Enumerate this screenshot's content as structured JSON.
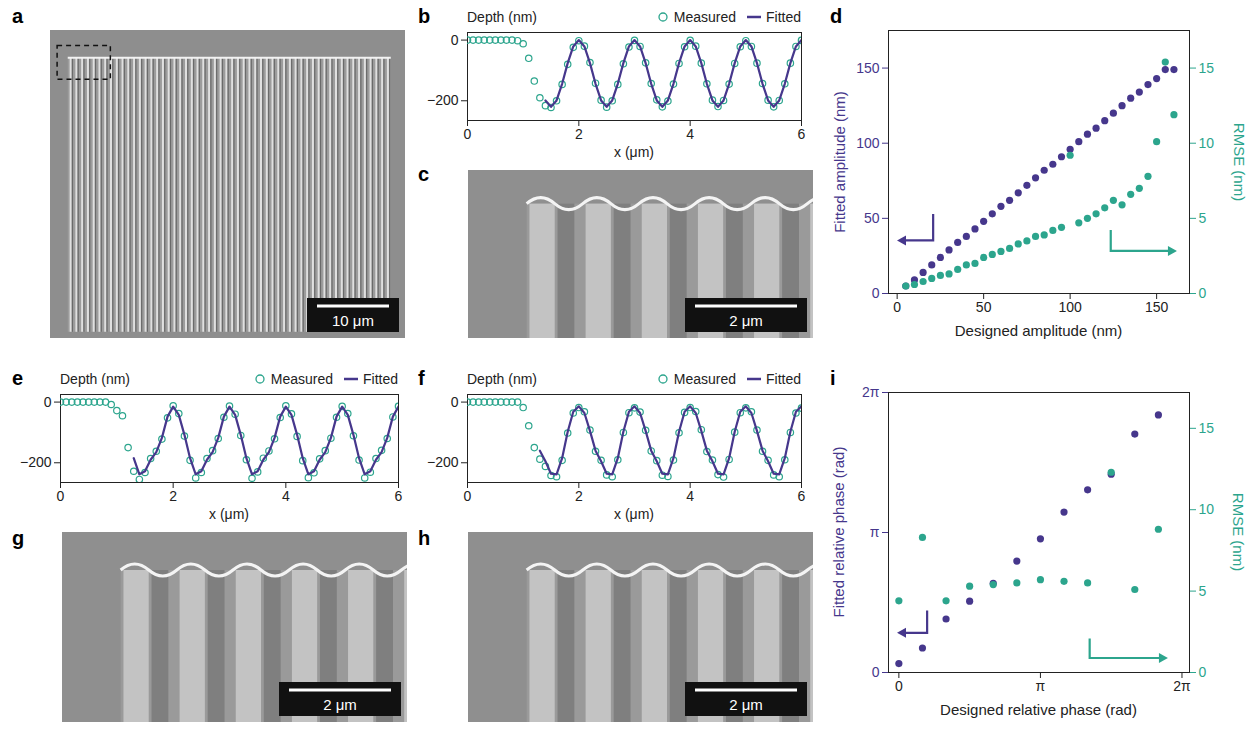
{
  "images": [
    {
      "panel": "a",
      "scale_bar": "10 μm"
    },
    {
      "panel": "c",
      "scale_bar": "2 μm"
    },
    {
      "panel": "g",
      "scale_bar": "2 μm"
    },
    {
      "panel": "h",
      "scale_bar": "2 μm"
    }
  ],
  "chart_data": [
    {
      "panel": "b",
      "type": "line",
      "y_label": "Depth (nm)",
      "x_label": "x (μm)",
      "xlim": [
        0,
        6
      ],
      "xticks": [
        0,
        2,
        4,
        6
      ],
      "ylim": [
        -265,
        25
      ],
      "yticks": [
        -200,
        0
      ],
      "legend": "top-right",
      "series": [
        {
          "name": "Measured",
          "type": "scatter",
          "marker": "open circle",
          "color": "#2ca58d",
          "x": [
            0,
            0.1,
            0.2,
            0.3,
            0.4,
            0.5,
            0.6,
            0.7,
            0.8,
            0.9,
            1,
            1.1,
            1.2,
            1.3,
            1.4,
            1.5,
            1.6,
            1.7,
            1.8,
            1.9,
            2,
            2.1,
            2.2,
            2.3,
            2.4,
            2.5,
            2.6,
            2.7,
            2.8,
            2.9,
            3,
            3.1,
            3.2,
            3.3,
            3.4,
            3.5,
            3.6,
            3.7,
            3.8,
            3.9,
            4,
            4.1,
            4.2,
            4.3,
            4.4,
            4.5,
            4.6,
            4.7,
            4.8,
            4.9,
            5,
            5.1,
            5.2,
            5.3,
            5.4,
            5.5,
            5.6,
            5.7,
            5.8,
            5.9,
            6
          ],
          "values": [
            0,
            0,
            0,
            0,
            0,
            0,
            0,
            0,
            0,
            -2,
            -12,
            -60,
            -135,
            -190,
            -216,
            -222,
            -200,
            -146,
            -80,
            -24,
            -2,
            -20,
            -74,
            -142,
            -198,
            -221,
            -200,
            -146,
            -78,
            -23,
            -1,
            -21,
            -75,
            -143,
            -197,
            -220,
            -201,
            -145,
            -77,
            -22,
            -1,
            -20,
            -76,
            -144,
            -198,
            -219,
            -199,
            -145,
            -77,
            -22,
            -2,
            -21,
            -76,
            -143,
            -198,
            -220,
            -199,
            -144,
            -76,
            -21,
            -1
          ]
        },
        {
          "name": "Fitted",
          "type": "line",
          "color": "#46378c",
          "x": [
            1.4,
            1.5,
            1.6,
            1.7,
            1.8,
            1.9,
            2,
            2.1,
            2.2,
            2.3,
            2.4,
            2.5,
            2.6,
            2.7,
            2.8,
            2.9,
            3,
            3.1,
            3.2,
            3.3,
            3.4,
            3.5,
            3.6,
            3.7,
            3.8,
            3.9,
            4,
            4.1,
            4.2,
            4.3,
            4.4,
            4.5,
            4.6,
            4.7,
            4.8,
            4.9,
            5,
            5.1,
            5.2,
            5.3,
            5.4,
            5.5,
            5.6,
            5.7,
            5.8,
            5.9,
            6
          ],
          "values": [
            -199,
            -220,
            -199,
            -144,
            -76,
            -21,
            0,
            -21,
            -76,
            -144,
            -199,
            -220,
            -199,
            -144,
            -76,
            -21,
            0,
            -21,
            -76,
            -144,
            -199,
            -220,
            -199,
            -144,
            -76,
            -21,
            0,
            -21,
            -76,
            -144,
            -199,
            -220,
            -199,
            -144,
            -76,
            -21,
            0,
            -21,
            -76,
            -144,
            -199,
            -220,
            -199,
            -144,
            -76,
            -21,
            0
          ]
        }
      ]
    },
    {
      "panel": "d",
      "type": "scatter",
      "x_label": "Designed amplitude (nm)",
      "xlim": [
        -5,
        169
      ],
      "xticks": [
        0,
        50,
        100,
        150
      ],
      "ylim": [
        0,
        175
      ],
      "yticks": [
        0,
        50,
        100,
        150
      ],
      "y2lim": [
        0,
        17.5
      ],
      "y2ticks": [
        0,
        5,
        10,
        15
      ],
      "x": [
        5,
        10,
        15,
        20,
        25,
        30,
        35,
        40,
        45,
        50,
        55,
        60,
        65,
        70,
        75,
        80,
        85,
        90,
        95,
        100,
        105,
        110,
        115,
        120,
        125,
        130,
        135,
        140,
        145,
        150,
        155,
        160
      ],
      "series": [
        {
          "name": "Fitted amplitude (nm)",
          "marker": "filled circle",
          "color": "#46378c",
          "values": [
            5,
            9,
            14,
            19,
            24,
            29,
            34,
            38,
            43,
            48,
            53,
            58,
            62,
            67,
            72,
            77,
            82,
            86,
            91,
            96,
            101,
            106,
            110,
            115,
            120,
            125,
            130,
            134,
            139,
            143,
            149,
            149
          ]
        },
        {
          "name": "RMSE (nm)",
          "axis": "y2",
          "marker": "filled circle",
          "color": "#2ca58d",
          "values": [
            0.5,
            0.6,
            0.8,
            1.0,
            1.2,
            1.3,
            1.6,
            1.9,
            2.0,
            2.4,
            2.6,
            2.8,
            3.0,
            3.3,
            3.5,
            3.8,
            3.9,
            4.2,
            4.4,
            9.2,
            4.7,
            5.0,
            5.3,
            5.7,
            6.2,
            5.9,
            6.6,
            7.0,
            7.8,
            10.1,
            15.4,
            11.9
          ]
        }
      ]
    },
    {
      "panel": "e",
      "type": "line",
      "y_label": "Depth (nm)",
      "x_label": "x (μm)",
      "xlim": [
        0,
        6
      ],
      "xticks": [
        0,
        2,
        4,
        6
      ],
      "ylim": [
        -265,
        25
      ],
      "yticks": [
        -200,
        0
      ],
      "legend": "top-right",
      "series": [
        {
          "name": "Measured",
          "type": "scatter",
          "marker": "open circle",
          "color": "#2ca58d",
          "x": [
            0,
            0.1,
            0.2,
            0.3,
            0.4,
            0.5,
            0.6,
            0.7,
            0.8,
            0.9,
            1,
            1.1,
            1.2,
            1.3,
            1.4,
            1.5,
            1.6,
            1.7,
            1.8,
            1.9,
            2,
            2.1,
            2.2,
            2.3,
            2.4,
            2.5,
            2.6,
            2.7,
            2.8,
            2.9,
            3,
            3.1,
            3.2,
            3.3,
            3.4,
            3.5,
            3.6,
            3.7,
            3.8,
            3.9,
            4,
            4.1,
            4.2,
            4.3,
            4.4,
            4.5,
            4.6,
            4.7,
            4.8,
            4.9,
            5,
            5.1,
            5.2,
            5.3,
            5.4,
            5.5,
            5.6,
            5.7,
            5.8,
            5.9,
            6
          ],
          "values": [
            0,
            0,
            0,
            0,
            0,
            0,
            0,
            0,
            0,
            -8,
            -28,
            -45,
            -150,
            -228,
            -255,
            -232,
            -186,
            -162,
            -122,
            -52,
            -12,
            -38,
            -112,
            -192,
            -250,
            -232,
            -186,
            -160,
            -120,
            -50,
            -13,
            -40,
            -110,
            -190,
            -251,
            -230,
            -185,
            -161,
            -121,
            -51,
            -12,
            -39,
            -113,
            -193,
            -249,
            -233,
            -187,
            -160,
            -119,
            -50,
            -14,
            -38,
            -111,
            -191,
            -250,
            -231,
            -186,
            -159,
            -120,
            -49,
            -14
          ]
        },
        {
          "name": "Fitted",
          "type": "line",
          "color": "#46378c",
          "x": [
            1.3,
            1.4,
            1.5,
            1.6,
            1.7,
            1.8,
            1.9,
            2,
            2.1,
            2.2,
            2.3,
            2.4,
            2.5,
            2.6,
            2.7,
            2.8,
            2.9,
            3,
            3.1,
            3.2,
            3.3,
            3.4,
            3.5,
            3.6,
            3.7,
            3.8,
            3.9,
            4,
            4.1,
            4.2,
            4.3,
            4.4,
            4.5,
            4.6,
            4.7,
            4.8,
            4.9,
            5,
            5.1,
            5.2,
            5.3,
            5.4,
            5.5,
            5.6,
            5.7,
            5.8,
            5.9,
            6
          ],
          "values": [
            -185,
            -238,
            -228,
            -190,
            -165,
            -118,
            -48,
            -15,
            -42,
            -108,
            -185,
            -238,
            -228,
            -190,
            -165,
            -118,
            -48,
            -15,
            -42,
            -108,
            -185,
            -238,
            -228,
            -190,
            -165,
            -118,
            -48,
            -15,
            -42,
            -108,
            -185,
            -238,
            -228,
            -190,
            -165,
            -118,
            -48,
            -15,
            -42,
            -108,
            -185,
            -238,
            -228,
            -190,
            -165,
            -118,
            -48,
            -15
          ]
        }
      ]
    },
    {
      "panel": "f",
      "type": "line",
      "y_label": "Depth (nm)",
      "x_label": "x (μm)",
      "xlim": [
        0,
        6
      ],
      "xticks": [
        0,
        2,
        4,
        6
      ],
      "ylim": [
        -265,
        25
      ],
      "yticks": [
        -200,
        0
      ],
      "legend": "top-right",
      "series": [
        {
          "name": "Measured",
          "type": "scatter",
          "marker": "open circle",
          "color": "#2ca58d",
          "x": [
            0,
            0.1,
            0.2,
            0.3,
            0.4,
            0.5,
            0.6,
            0.7,
            0.8,
            0.9,
            1,
            1.1,
            1.2,
            1.3,
            1.4,
            1.5,
            1.6,
            1.7,
            1.8,
            1.9,
            2,
            2.1,
            2.2,
            2.3,
            2.4,
            2.5,
            2.6,
            2.7,
            2.8,
            2.9,
            3,
            3.1,
            3.2,
            3.3,
            3.4,
            3.5,
            3.6,
            3.7,
            3.8,
            3.9,
            4,
            4.1,
            4.2,
            4.3,
            4.4,
            4.5,
            4.6,
            4.7,
            4.8,
            4.9,
            5,
            5.1,
            5.2,
            5.3,
            5.4,
            5.5,
            5.6,
            5.7,
            5.8,
            5.9,
            6
          ],
          "values": [
            0,
            0,
            0,
            0,
            0,
            0,
            0,
            0,
            0,
            0,
            -18,
            -78,
            -150,
            -188,
            -212,
            -242,
            -246,
            -192,
            -102,
            -36,
            -18,
            -32,
            -92,
            -162,
            -192,
            -240,
            -246,
            -190,
            -100,
            -35,
            -19,
            -33,
            -93,
            -161,
            -193,
            -241,
            -245,
            -191,
            -101,
            -34,
            -18,
            -31,
            -91,
            -163,
            -191,
            -239,
            -247,
            -189,
            -99,
            -35,
            -19,
            -32,
            -92,
            -162,
            -192,
            -240,
            -246,
            -190,
            -100,
            -36,
            -20
          ]
        },
        {
          "name": "Fitted",
          "type": "line",
          "color": "#46378c",
          "x": [
            1.3,
            1.4,
            1.5,
            1.6,
            1.7,
            1.8,
            1.9,
            2,
            2.1,
            2.2,
            2.3,
            2.4,
            2.5,
            2.6,
            2.7,
            2.8,
            2.9,
            3,
            3.1,
            3.2,
            3.3,
            3.4,
            3.5,
            3.6,
            3.7,
            3.8,
            3.9,
            4,
            4.1,
            4.2,
            4.3,
            4.4,
            4.5,
            4.6,
            4.7,
            4.8,
            4.9,
            5,
            5.1,
            5.2,
            5.3,
            5.4,
            5.5,
            5.6,
            5.7,
            5.8,
            5.9,
            6
          ],
          "values": [
            -160,
            -195,
            -236,
            -238,
            -185,
            -98,
            -32,
            -14,
            -36,
            -95,
            -160,
            -195,
            -236,
            -238,
            -185,
            -98,
            -32,
            -14,
            -36,
            -95,
            -160,
            -195,
            -236,
            -238,
            -185,
            -98,
            -32,
            -14,
            -36,
            -95,
            -160,
            -195,
            -236,
            -238,
            -185,
            -98,
            -32,
            -14,
            -36,
            -95,
            -160,
            -195,
            -236,
            -238,
            -185,
            -98,
            -32,
            -14
          ]
        }
      ]
    },
    {
      "panel": "i",
      "type": "scatter",
      "x_label": "Designed relative phase (rad)",
      "xlim": [
        -0.23,
        6.45
      ],
      "xticks": [
        0,
        {
          "value": 3.1416,
          "label": "π"
        },
        {
          "value": 6.2832,
          "label": "2π"
        }
      ],
      "ylim": [
        0,
        6.2832
      ],
      "yticks": [
        0,
        {
          "value": 3.1416,
          "label": "π"
        },
        {
          "value": 6.2832,
          "label": "2π"
        }
      ],
      "y2lim": [
        0,
        17.2
      ],
      "y2ticks": [
        0,
        5,
        10,
        15
      ],
      "x": [
        0,
        0.5236,
        1.0472,
        1.5708,
        2.0944,
        2.618,
        3.1416,
        3.6652,
        4.1888,
        4.7124,
        5.236,
        5.7596
      ],
      "series": [
        {
          "name": "Fitted relative phase (rad)",
          "marker": "filled circle",
          "color": "#46378c",
          "values": [
            0.2,
            0.55,
            1.2,
            1.6,
            2.0,
            2.5,
            3.0,
            3.6,
            4.1,
            4.45,
            5.35,
            5.78
          ]
        },
        {
          "name": "RMSE (nm)",
          "axis": "y2",
          "marker": "filled circle",
          "color": "#2ca58d",
          "values": [
            4.4,
            8.3,
            4.4,
            5.3,
            5.4,
            5.5,
            5.7,
            5.6,
            5.5,
            12.3,
            5.1,
            8.8
          ]
        }
      ]
    }
  ]
}
